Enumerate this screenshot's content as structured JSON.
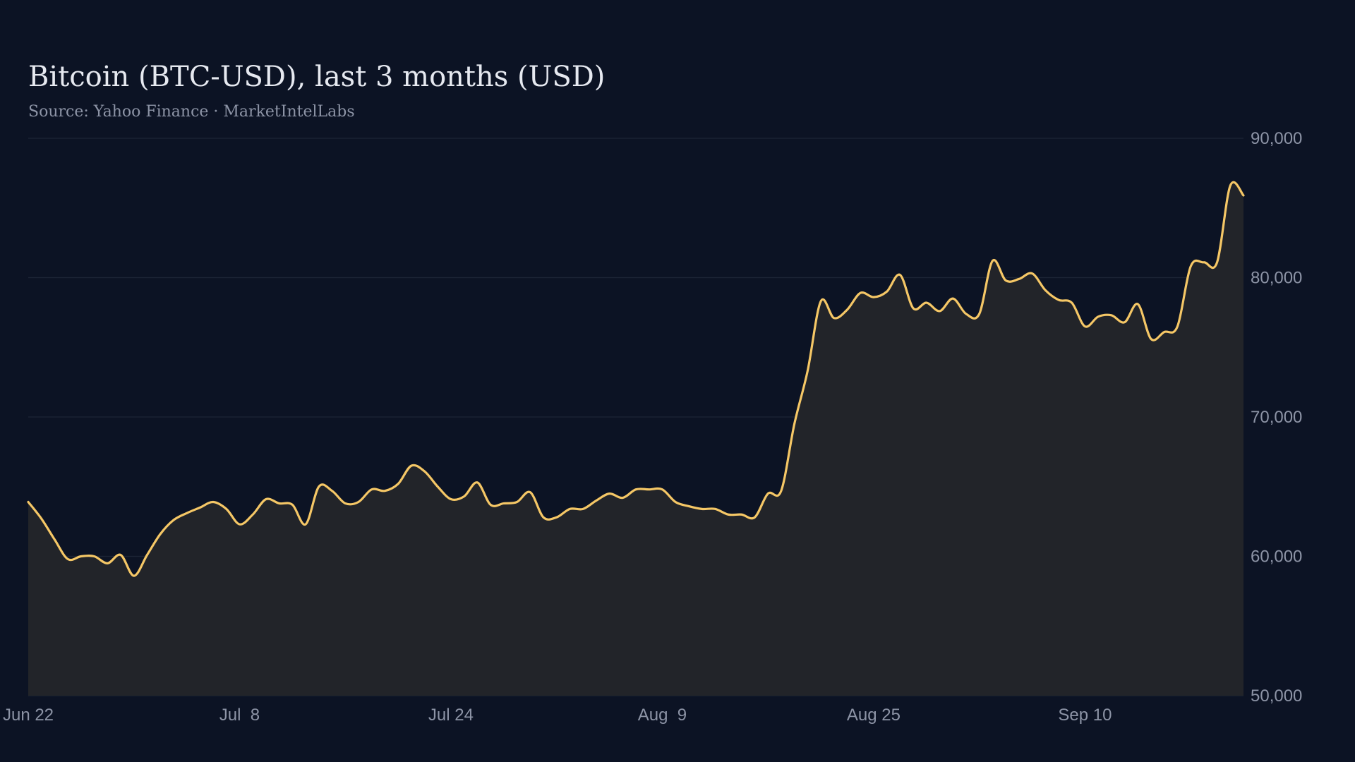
{
  "chart_data": {
    "type": "area",
    "title": "Bitcoin (BTC-USD), last 3 months (USD)",
    "subtitle": "Source: Yahoo Finance · MarketIntelLabs",
    "xlabel": "",
    "ylabel": "",
    "x_range": [
      "2024-06-22",
      "2024-09-20"
    ],
    "ylim": [
      50000,
      90000
    ],
    "y_ticks": [
      50000,
      60000,
      70000,
      80000,
      90000
    ],
    "y_tick_labels": [
      "50,000",
      "60,000",
      "70,000",
      "80,000",
      "90,000"
    ],
    "x_ticks": [
      "2024-06-22",
      "2024-07-08",
      "2024-07-24",
      "2024-08-09",
      "2024-08-25",
      "2024-09-10"
    ],
    "x_tick_labels": [
      "Jun 22",
      "Jul  8",
      "Jul 24",
      "Aug  9",
      "Aug 25",
      "Sep 10"
    ],
    "y_axis_position": "right",
    "grid": "horizontal",
    "legend": "none",
    "line_color": "#f5c766",
    "area_color": "#222429",
    "series": [
      {
        "values": [
          [
            "2024-06-22",
            63900
          ],
          [
            "2024-06-23",
            62700
          ],
          [
            "2024-06-24",
            61200
          ],
          [
            "2024-06-25",
            59800
          ],
          [
            "2024-06-26",
            60000
          ],
          [
            "2024-06-27",
            60000
          ],
          [
            "2024-06-28",
            59500
          ],
          [
            "2024-06-29",
            60100
          ],
          [
            "2024-06-30",
            58600
          ],
          [
            "2024-07-01",
            60100
          ],
          [
            "2024-07-02",
            61600
          ],
          [
            "2024-07-03",
            62600
          ],
          [
            "2024-07-04",
            63100
          ],
          [
            "2024-07-05",
            63500
          ],
          [
            "2024-07-06",
            63900
          ],
          [
            "2024-07-07",
            63400
          ],
          [
            "2024-07-08",
            62300
          ],
          [
            "2024-07-09",
            63000
          ],
          [
            "2024-07-10",
            64100
          ],
          [
            "2024-07-11",
            63800
          ],
          [
            "2024-07-12",
            63700
          ],
          [
            "2024-07-13",
            62300
          ],
          [
            "2024-07-14",
            65000
          ],
          [
            "2024-07-15",
            64700
          ],
          [
            "2024-07-16",
            63800
          ],
          [
            "2024-07-17",
            63900
          ],
          [
            "2024-07-18",
            64800
          ],
          [
            "2024-07-19",
            64700
          ],
          [
            "2024-07-20",
            65200
          ],
          [
            "2024-07-21",
            66500
          ],
          [
            "2024-07-22",
            66100
          ],
          [
            "2024-07-23",
            65000
          ],
          [
            "2024-07-24",
            64100
          ],
          [
            "2024-07-25",
            64300
          ],
          [
            "2024-07-26",
            65300
          ],
          [
            "2024-07-27",
            63700
          ],
          [
            "2024-07-28",
            63800
          ],
          [
            "2024-07-29",
            63900
          ],
          [
            "2024-07-30",
            64600
          ],
          [
            "2024-07-31",
            62800
          ],
          [
            "2024-08-01",
            62800
          ],
          [
            "2024-08-02",
            63400
          ],
          [
            "2024-08-03",
            63400
          ],
          [
            "2024-08-04",
            64000
          ],
          [
            "2024-08-05",
            64500
          ],
          [
            "2024-08-06",
            64200
          ],
          [
            "2024-08-07",
            64800
          ],
          [
            "2024-08-08",
            64800
          ],
          [
            "2024-08-09",
            64800
          ],
          [
            "2024-08-10",
            63900
          ],
          [
            "2024-08-11",
            63600
          ],
          [
            "2024-08-12",
            63400
          ],
          [
            "2024-08-13",
            63400
          ],
          [
            "2024-08-14",
            63000
          ],
          [
            "2024-08-15",
            63000
          ],
          [
            "2024-08-16",
            62800
          ],
          [
            "2024-08-17",
            64500
          ],
          [
            "2024-08-18",
            64700
          ],
          [
            "2024-08-19",
            69500
          ],
          [
            "2024-08-20",
            73300
          ],
          [
            "2024-08-21",
            78300
          ],
          [
            "2024-08-22",
            77100
          ],
          [
            "2024-08-23",
            77700
          ],
          [
            "2024-08-24",
            78900
          ],
          [
            "2024-08-25",
            78600
          ],
          [
            "2024-08-26",
            79000
          ],
          [
            "2024-08-27",
            80200
          ],
          [
            "2024-08-28",
            77800
          ],
          [
            "2024-08-29",
            78200
          ],
          [
            "2024-08-30",
            77600
          ],
          [
            "2024-08-31",
            78500
          ],
          [
            "2024-09-01",
            77400
          ],
          [
            "2024-09-02",
            77400
          ],
          [
            "2024-09-03",
            81200
          ],
          [
            "2024-09-04",
            79800
          ],
          [
            "2024-09-05",
            79900
          ],
          [
            "2024-09-06",
            80300
          ],
          [
            "2024-09-07",
            79100
          ],
          [
            "2024-09-08",
            78400
          ],
          [
            "2024-09-09",
            78200
          ],
          [
            "2024-09-10",
            76500
          ],
          [
            "2024-09-11",
            77200
          ],
          [
            "2024-09-12",
            77300
          ],
          [
            "2024-09-13",
            76800
          ],
          [
            "2024-09-14",
            78100
          ],
          [
            "2024-09-15",
            75600
          ],
          [
            "2024-09-16",
            76100
          ],
          [
            "2024-09-17",
            76500
          ],
          [
            "2024-09-18",
            80800
          ],
          [
            "2024-09-19",
            81100
          ],
          [
            "2024-09-20",
            81100
          ],
          [
            "2024-09-21",
            86600
          ],
          [
            "2024-09-22",
            85900
          ]
        ]
      }
    ]
  }
}
